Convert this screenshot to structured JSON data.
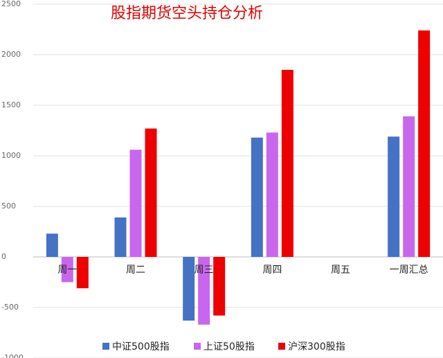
{
  "chart_data": {
    "type": "bar",
    "title": "股指期货空头持仓分析",
    "categories": [
      "周一",
      "周二",
      "周三",
      "周四",
      "周五",
      "一周汇总"
    ],
    "series": [
      {
        "name": "中证500股指",
        "color": "#4472c4",
        "values": [
          230,
          390,
          -630,
          1180,
          0,
          1190
        ]
      },
      {
        "name": "上证50股指",
        "color": "#c966ee",
        "values": [
          -250,
          1060,
          -670,
          1230,
          0,
          1390
        ]
      },
      {
        "name": "沪深300股指",
        "color": "#ee0000",
        "values": [
          -310,
          1270,
          -580,
          1850,
          0,
          2240
        ]
      }
    ],
    "ylim": [
      -1000,
      2500
    ],
    "yticks": [
      -1000,
      -500,
      0,
      500,
      1000,
      1500,
      2000,
      2500
    ],
    "grid": true,
    "legend": "bottom"
  }
}
